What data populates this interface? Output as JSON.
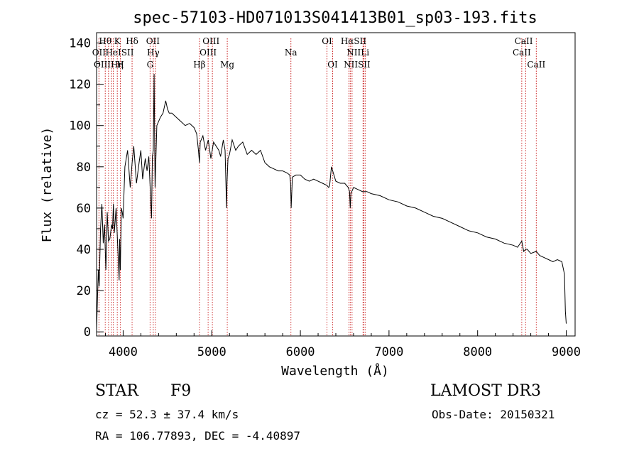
{
  "chart_data": {
    "type": "line",
    "title": "spec-57103-HD071013S041413B01_sp03-193.fits",
    "xlabel": "Wavelength (Å)",
    "ylabel": "Flux (relative)",
    "xlim": [
      3700,
      9100
    ],
    "ylim": [
      -2,
      145
    ],
    "xticks": [
      4000,
      5000,
      6000,
      7000,
      8000,
      9000
    ],
    "yticks": [
      0,
      20,
      40,
      60,
      80,
      100,
      120,
      140
    ],
    "series": [
      {
        "name": "Flux",
        "x": [
          3700,
          3710,
          3720,
          3730,
          3745,
          3760,
          3775,
          3790,
          3805,
          3820,
          3835,
          3850,
          3870,
          3880,
          3890,
          3900,
          3920,
          3940,
          3955,
          3960,
          3968,
          3980,
          3990,
          4000,
          4020,
          4050,
          4080,
          4101,
          4120,
          4150,
          4180,
          4200,
          4220,
          4250,
          4270,
          4290,
          4310,
          4320,
          4330,
          4340,
          4350,
          4360,
          4380,
          4400,
          4420,
          4450,
          4480,
          4500,
          4520,
          4550,
          4600,
          4650,
          4700,
          4750,
          4800,
          4830,
          4850,
          4861,
          4870,
          4900,
          4930,
          4960,
          4990,
          5020,
          5050,
          5080,
          5100,
          5130,
          5150,
          5167,
          5172,
          5183,
          5200,
          5230,
          5270,
          5300,
          5350,
          5400,
          5450,
          5500,
          5550,
          5600,
          5650,
          5700,
          5750,
          5800,
          5850,
          5880,
          5890,
          5896,
          5910,
          5950,
          6000,
          6050,
          6100,
          6150,
          6200,
          6250,
          6300,
          6320,
          6330,
          6350,
          6400,
          6450,
          6500,
          6540,
          6555,
          6563,
          6570,
          6600,
          6650,
          6700,
          6750,
          6800,
          6900,
          7000,
          7100,
          7200,
          7300,
          7400,
          7500,
          7600,
          7700,
          7800,
          7900,
          8000,
          8100,
          8200,
          8300,
          8400,
          8450,
          8498,
          8520,
          8542,
          8560,
          8600,
          8662,
          8700,
          8750,
          8800,
          8850,
          8900,
          8950,
          8980,
          8990,
          9000
        ],
        "values": [
          1,
          15,
          30,
          22,
          50,
          62,
          43,
          52,
          30,
          58,
          44,
          45,
          52,
          50,
          62,
          48,
          60,
          40,
          25,
          45,
          30,
          60,
          58,
          55,
          80,
          88,
          70,
          82,
          90,
          72,
          82,
          88,
          74,
          84,
          78,
          85,
          65,
          55,
          85,
          88,
          125,
          70,
          100,
          102,
          104,
          106,
          112,
          108,
          106,
          106,
          104,
          102,
          100,
          101,
          99,
          96,
          88,
          82,
          92,
          95,
          88,
          93,
          84,
          92,
          90,
          88,
          85,
          93,
          88,
          60,
          72,
          84,
          86,
          93,
          88,
          90,
          92,
          86,
          88,
          86,
          88,
          82,
          80,
          79,
          78,
          78,
          77,
          76,
          72,
          60,
          75,
          76,
          76,
          74,
          73,
          74,
          73,
          72,
          71,
          70,
          71,
          80,
          73,
          72,
          72,
          70,
          68,
          60,
          67,
          70,
          69,
          68,
          68,
          67,
          66,
          64,
          63,
          61,
          60,
          58,
          56,
          55,
          53,
          51,
          49,
          48,
          46,
          45,
          43,
          42,
          41,
          44,
          39,
          40,
          40,
          38,
          39,
          37,
          36,
          35,
          34,
          35,
          34,
          28,
          10,
          4
        ]
      }
    ],
    "lines_top": [
      {
        "label": "Hθ",
        "x": 3798,
        "row": 0
      },
      {
        "label": "K",
        "x": 3934,
        "row": 0
      },
      {
        "label": "Hδ",
        "x": 4101,
        "row": 0
      },
      {
        "label": "OII",
        "x": 4336,
        "row": 0
      },
      {
        "label": "OIII",
        "x": 4992,
        "row": 0
      },
      {
        "label": "OI",
        "x": 6300,
        "row": 0
      },
      {
        "label": "HαSII",
        "x": 6600,
        "row": 0
      },
      {
        "label": "CaII",
        "x": 8520,
        "row": 0
      },
      {
        "label": "OII",
        "x": 3727,
        "row": 1
      },
      {
        "label": "HeISII",
        "x": 3960,
        "row": 1
      },
      {
        "label": "Hγ",
        "x": 4340,
        "row": 1
      },
      {
        "label": "OIII",
        "x": 4959,
        "row": 1
      },
      {
        "label": "Na",
        "x": 5893,
        "row": 1
      },
      {
        "label": "NIILi",
        "x": 6650,
        "row": 1
      },
      {
        "label": "CaII",
        "x": 8498,
        "row": 1
      },
      {
        "label": "OIIIHη",
        "x": 3835,
        "row": 2
      },
      {
        "label": "H",
        "x": 3968,
        "row": 2
      },
      {
        "label": "G",
        "x": 4304,
        "row": 2
      },
      {
        "label": "Hβ",
        "x": 4861,
        "row": 2
      },
      {
        "label": "Mg",
        "x": 5175,
        "row": 2
      },
      {
        "label": "OI",
        "x": 6364,
        "row": 2
      },
      {
        "label": "NIISII",
        "x": 6640,
        "row": 2
      },
      {
        "label": "CaII",
        "x": 8662,
        "row": 2
      }
    ],
    "line_positions": [
      3727,
      3798,
      3835,
      3869,
      3889,
      3934,
      3968,
      4101,
      4304,
      4340,
      4363,
      4861,
      4959,
      5007,
      5175,
      5893,
      6300,
      6364,
      6548,
      6563,
      6583,
      6707,
      6716,
      6731,
      8498,
      8542,
      8662
    ]
  },
  "info": {
    "object_class": "STAR",
    "subclass": "F9",
    "survey": "LAMOST DR3",
    "cz": "cz = 52.3 ± 37.4 km/s",
    "obs_date": "Obs-Date: 20150321",
    "coords": "RA = 106.77893, DEC =  -4.40897"
  }
}
